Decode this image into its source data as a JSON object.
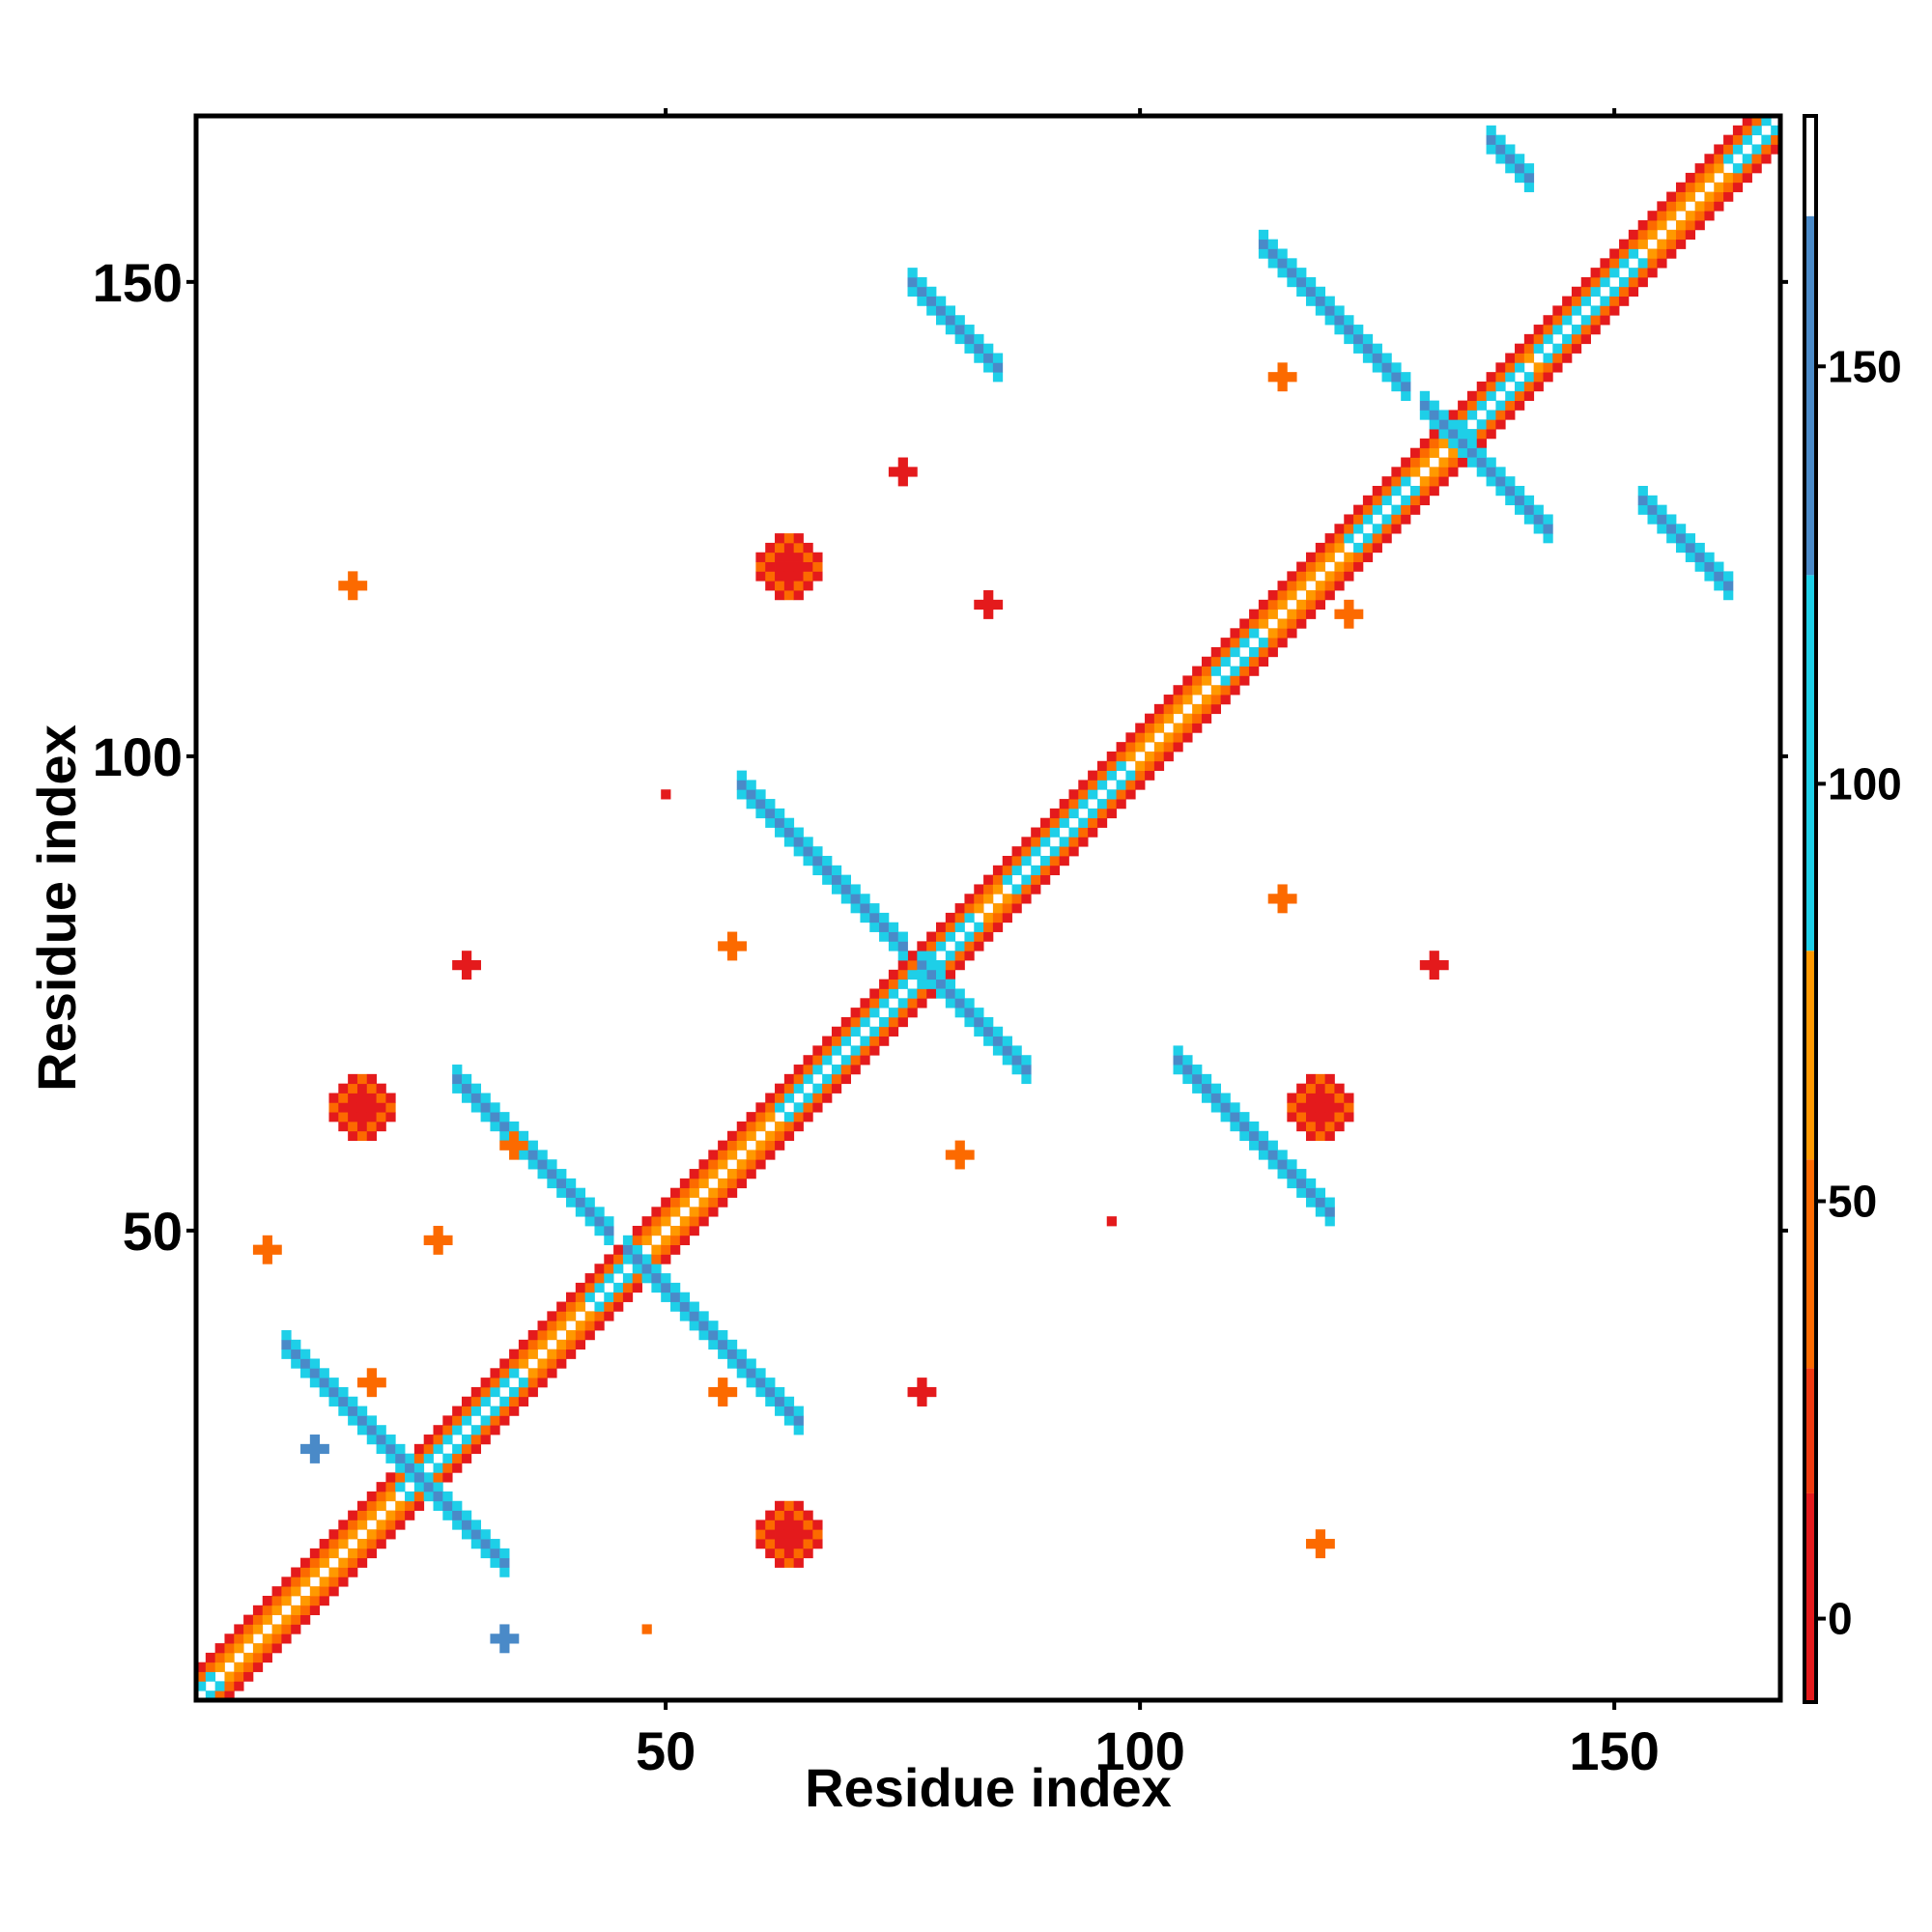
{
  "chart_data": {
    "type": "heatmap",
    "title": "",
    "xlabel": "Residue index",
    "ylabel": "Residue index",
    "xlim": [
      1,
      167
    ],
    "ylim": [
      1,
      167
    ],
    "x_ticks": [
      50,
      100,
      150
    ],
    "y_ticks": [
      50,
      100,
      150
    ],
    "grid": false,
    "colorbar": {
      "placement": "right",
      "range": [
        -10,
        180
      ],
      "ticks": [
        0,
        50,
        100,
        150
      ],
      "bands": [
        {
          "from": -10,
          "to": 15,
          "color": "#e41a1c"
        },
        {
          "from": 15,
          "to": 30,
          "color": "#f03a10"
        },
        {
          "from": 30,
          "to": 55,
          "color": "#fc6a00"
        },
        {
          "from": 55,
          "to": 80,
          "color": "#ff9900"
        },
        {
          "from": 80,
          "to": 125,
          "color": "#1ecfe8"
        },
        {
          "from": 125,
          "to": 168,
          "color": "#4a8ac8"
        },
        {
          "from": 168,
          "to": 180,
          "color": "#ffffff"
        }
      ]
    },
    "diagonal": {
      "from": 1,
      "to": 167,
      "pattern": [
        {
          "offset": 1,
          "value": 60
        },
        {
          "offset": 2,
          "value": 42
        },
        {
          "offset": 3,
          "value": 5
        }
      ],
      "cyan_segments": [
        [
          1,
          2
        ],
        [
          22,
          34
        ],
        [
          42,
          46
        ],
        [
          62,
          82
        ],
        [
          86,
          98
        ],
        [
          108,
          112
        ],
        [
          122,
          128
        ],
        [
          134,
          140
        ],
        [
          142,
          152
        ],
        [
          162,
          167
        ]
      ]
    },
    "antidiagonals": [
      {
        "a": 13,
        "b": 35,
        "x1": 10,
        "x2": 33,
        "value": 145
      },
      {
        "a": 36,
        "b": 58,
        "x1": 28,
        "x2": 44,
        "value": 145
      },
      {
        "a": 36,
        "b": 58,
        "x1": 46,
        "x2": 64,
        "value": 145
      },
      {
        "a": 63,
        "b": 92,
        "x1": 58,
        "x2": 75,
        "value": 145
      },
      {
        "a": 63,
        "b": 92,
        "x1": 77,
        "x2": 88,
        "value": 145
      },
      {
        "a": 123,
        "b": 144,
        "x1": 113,
        "x2": 128,
        "value": 145
      },
      {
        "a": 123,
        "b": 144,
        "x1": 130,
        "x2": 143,
        "value": 145
      },
      {
        "a": 105,
        "b": 121,
        "x1": 76,
        "x2": 85,
        "value": 145
      },
      {
        "a": 159,
        "b": 143,
        "x1": 137,
        "x2": 141,
        "value": 140
      },
      {
        "a": 81,
        "b": 91,
        "x1": 104,
        "x2": 120,
        "value": 145
      },
      {
        "a": 139,
        "b": 141,
        "x1": 153,
        "x2": 162,
        "value": 140
      }
    ],
    "blobs": [
      {
        "x": 18,
        "y": 63,
        "r": 3,
        "value": 10
      },
      {
        "x": 63,
        "y": 120,
        "r": 3,
        "value": 10
      },
      {
        "x": 63,
        "y": 18,
        "r": 3,
        "value": 10
      },
      {
        "x": 119,
        "y": 63,
        "r": 3,
        "value": 10
      },
      {
        "x": 17,
        "y": 118,
        "r": 1,
        "value": 45
      },
      {
        "x": 29,
        "y": 78,
        "r": 1,
        "value": 10
      },
      {
        "x": 26,
        "y": 49,
        "r": 1,
        "value": 45
      },
      {
        "x": 56,
        "y": 33,
        "r": 1,
        "value": 45
      },
      {
        "x": 77,
        "y": 33,
        "r": 1,
        "value": 10
      },
      {
        "x": 57,
        "y": 80,
        "r": 1,
        "value": 45
      },
      {
        "x": 81,
        "y": 58,
        "r": 1,
        "value": 45
      },
      {
        "x": 75,
        "y": 130,
        "r": 1,
        "value": 10
      },
      {
        "x": 84,
        "y": 116,
        "r": 1,
        "value": 10
      },
      {
        "x": 115,
        "y": 140,
        "r": 1,
        "value": 45
      },
      {
        "x": 115,
        "y": 85,
        "r": 1,
        "value": 45
      },
      {
        "x": 131,
        "y": 78,
        "r": 1,
        "value": 10
      },
      {
        "x": 119,
        "y": 17,
        "r": 1,
        "value": 45
      },
      {
        "x": 122,
        "y": 115,
        "r": 1,
        "value": 45
      },
      {
        "x": 8,
        "y": 48,
        "r": 1,
        "value": 45
      },
      {
        "x": 13,
        "y": 27,
        "r": 1,
        "value": 145
      },
      {
        "x": 19,
        "y": 34,
        "r": 1,
        "value": 45
      },
      {
        "x": 50,
        "y": 96,
        "r": 0,
        "value": 10
      },
      {
        "x": 97,
        "y": 51,
        "r": 0,
        "value": 10
      },
      {
        "x": 48,
        "y": 8,
        "r": 0,
        "value": 45
      },
      {
        "x": 34,
        "y": 59,
        "r": 1,
        "value": 45
      },
      {
        "x": 33,
        "y": 7,
        "r": 1,
        "value": 145
      }
    ]
  }
}
